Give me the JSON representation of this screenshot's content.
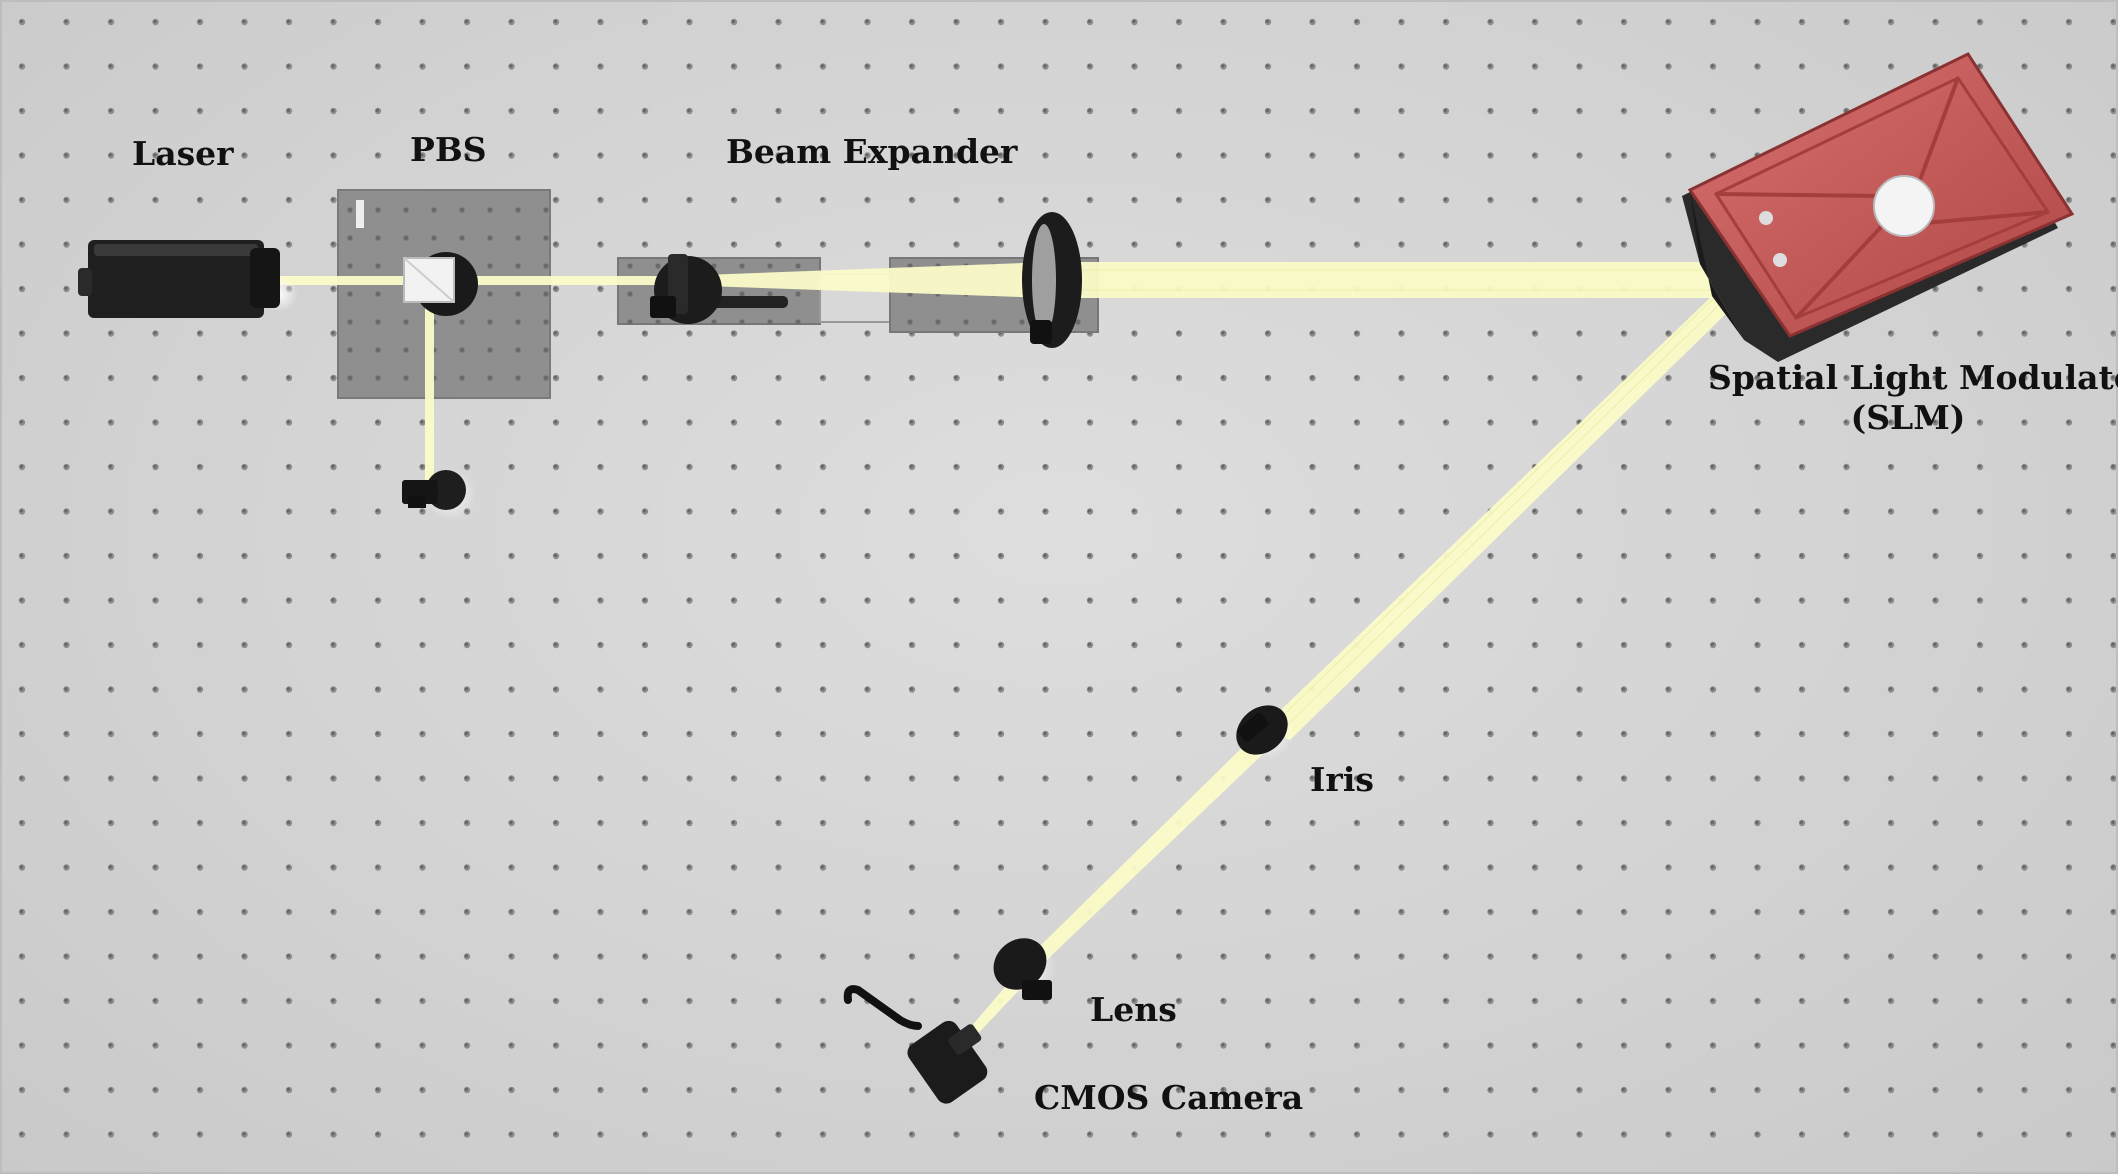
{
  "labels": {
    "laser": "Laser",
    "pbs": "PBS",
    "beam_expander": "Beam Expander",
    "slm_line1": "Spatial Light Modulator",
    "slm_line2": "(SLM)",
    "iris": "Iris",
    "lens": "Lens",
    "camera": "CMOS Camera"
  },
  "colors": {
    "table": "#d4d4d4",
    "hole": "#8a8a8a",
    "beam": "#fbfbc8",
    "slm": "#c55a5a",
    "component": "#1c1c1c",
    "breadboard": "#8c8c8c"
  }
}
